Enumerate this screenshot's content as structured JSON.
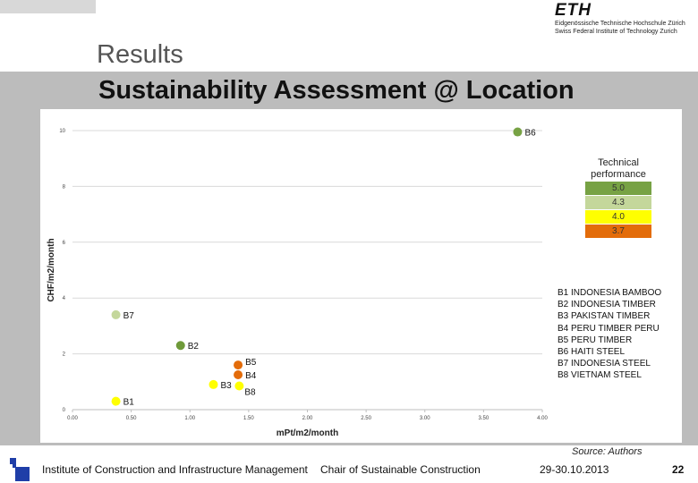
{
  "header": {
    "title": "Results",
    "subtitle": "Sustainability Assessment @ Location",
    "logo_mark": "ETH",
    "logo_line1": "Eidgenössische Technische Hochschule Zürich",
    "logo_line2": "Swiss Federal Institute of Technology Zurich"
  },
  "chart_data": {
    "type": "scatter",
    "xlabel": "mPt/m2/month",
    "ylabel": "CHF/m2/month",
    "xlim": [
      0,
      4
    ],
    "ylim": [
      0,
      10
    ],
    "x_ticks": [
      0,
      0.5,
      1,
      1.5,
      2,
      2.5,
      3,
      3.5,
      4
    ],
    "x_tick_labels": [
      "0.00",
      "0.50",
      "1.00",
      "1.50",
      "2.00",
      "2.50",
      "3.00",
      "3.50",
      "4.00"
    ],
    "y_ticks": [
      0,
      2,
      4,
      6,
      8,
      10
    ],
    "y_tick_labels": [
      "0",
      "2",
      "4",
      "6",
      "8",
      "10"
    ],
    "grid": "horizontal",
    "points": [
      {
        "label": "B1",
        "x": 0.37,
        "y": 0.3,
        "color": "#ffff00"
      },
      {
        "label": "B2",
        "x": 0.92,
        "y": 2.3,
        "color": "#6f9a3a"
      },
      {
        "label": "B3",
        "x": 1.2,
        "y": 0.9,
        "color": "#ffff00"
      },
      {
        "label": "B4",
        "x": 1.41,
        "y": 1.25,
        "color": "#e36c0a"
      },
      {
        "label": "B5",
        "x": 1.41,
        "y": 1.6,
        "color": "#e36c0a"
      },
      {
        "label": "B6",
        "x": 3.79,
        "y": 9.95,
        "color": "#77a244"
      },
      {
        "label": "B7",
        "x": 0.37,
        "y": 3.4,
        "color": "#c4d79b"
      },
      {
        "label": "B8",
        "x": 1.42,
        "y": 0.85,
        "color": "#ffff00"
      }
    ],
    "legend": {
      "title_line1": "Technical",
      "title_line2": "performance",
      "placement": "right",
      "entries": [
        {
          "label": "5.0",
          "color": "#77a244"
        },
        {
          "label": "4.3",
          "color": "#c4d79b"
        },
        {
          "label": "4.0",
          "color": "#ffff00"
        },
        {
          "label": "3.7",
          "color": "#e36c0a"
        }
      ]
    }
  },
  "building_key": [
    "B1 INDONESIA BAMBOO",
    "B2 INDONESIA TIMBER",
    "B3 PAKISTAN TIMBER",
    "B4 PERU TIMBER PERU",
    "B5 PERU TIMBER",
    "B6 HAITI STEEL",
    "B7 INDONESIA STEEL",
    "B8 VIETNAM STEEL"
  ],
  "source": "Source: Authors",
  "footer": {
    "institute": "Institute of Construction and Infrastructure Management",
    "chair": "Chair of Sustainable Construction",
    "date": "29-30.10.2013",
    "page": "22"
  },
  "colors": {
    "band": "#bcbcbc",
    "grid": "#d9d9d9",
    "footer_icon": "#1f3ea8"
  }
}
